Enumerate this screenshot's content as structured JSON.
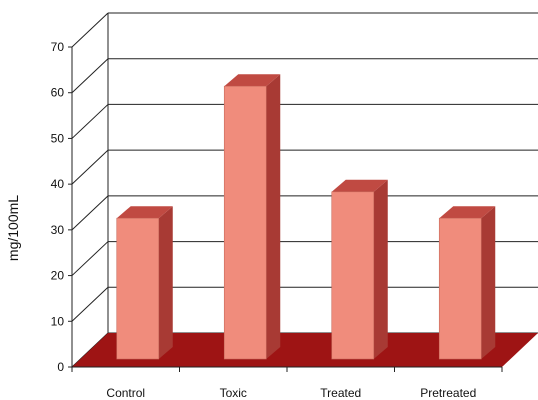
{
  "chart_data": {
    "type": "bar",
    "title": "",
    "xlabel": "",
    "ylabel": "mg/100mL",
    "categories": [
      "Control",
      "Toxic",
      "Treated",
      "Pretreated"
    ],
    "values": [
      32,
      62,
      38,
      32
    ],
    "ylim": [
      0,
      70
    ],
    "yticks": [
      "0",
      "10",
      "20",
      "30",
      "40",
      "50",
      "60",
      "70"
    ],
    "grid": true,
    "legend": "none",
    "style": "3d",
    "colors": {
      "bar_front": "#f08c7c",
      "bar_side": "#a83a34",
      "bar_top": "#c04a42",
      "floor": "#9e1414",
      "grid": "#222222"
    }
  }
}
